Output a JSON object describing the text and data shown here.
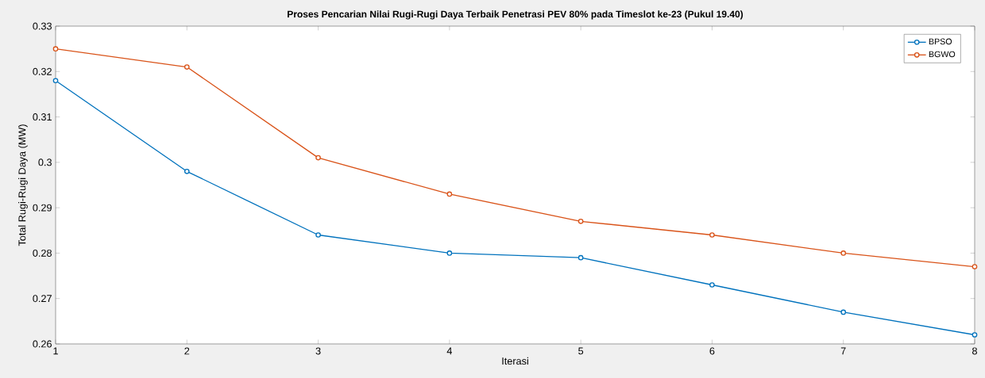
{
  "chart_data": {
    "type": "line",
    "title": "Proses Pencarian Nilai Rugi-Rugi Daya Terbaik Penetrasi PEV 80% pada Timeslot ke-23 (Pukul 19.40)",
    "xlabel": "Iterasi",
    "ylabel": "Total Rugi-Rugi Daya (MW)",
    "x": [
      1,
      2,
      3,
      4,
      5,
      6,
      7,
      8
    ],
    "series": [
      {
        "name": "BPSO",
        "color": "#0072bd",
        "values": [
          0.318,
          0.298,
          0.284,
          0.28,
          0.279,
          0.273,
          0.267,
          0.262
        ]
      },
      {
        "name": "BGWO",
        "color": "#d95319",
        "values": [
          0.325,
          0.321,
          0.301,
          0.293,
          0.287,
          0.284,
          0.28,
          0.277
        ]
      }
    ],
    "xlim": [
      1,
      8
    ],
    "ylim": [
      0.26,
      0.33
    ],
    "xticks": [
      1,
      2,
      3,
      4,
      5,
      6,
      7,
      8
    ],
    "yticks": [
      0.26,
      0.27,
      0.28,
      0.29,
      0.3,
      0.31,
      0.32,
      0.33
    ],
    "grid": false,
    "legend": "top right",
    "marker": "circle",
    "line_style": "solid"
  }
}
